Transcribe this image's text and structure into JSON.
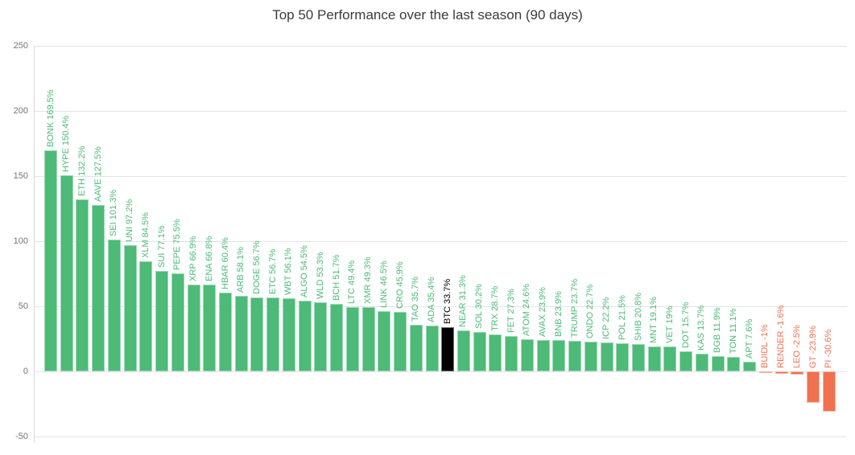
{
  "chart_data": {
    "type": "bar",
    "title": "Top 50 Performance over the last season (90 days)",
    "xlabel": "",
    "ylabel": "",
    "ylim": [
      -50,
      250
    ],
    "yticks": [
      250,
      200,
      150,
      100,
      50,
      0,
      -50
    ],
    "grid": "horizontal",
    "legend": "none",
    "highlight_symbol": "BTC",
    "categories": [
      "BONK",
      "HYPE",
      "ETH",
      "AAVE",
      "SEI",
      "UNI",
      "XLM",
      "SUI",
      "PEPE",
      "XRP",
      "ENA",
      "HBAR",
      "ARB",
      "DOGE",
      "ETC",
      "WBT",
      "ALGO",
      "WLD",
      "BCH",
      "LTC",
      "XMR",
      "LINK",
      "CRO",
      "TAO",
      "ADA",
      "BTC",
      "NEAR",
      "SOL",
      "TRX",
      "FET",
      "ATOM",
      "AVAX",
      "BNB",
      "TRUMP",
      "ONDO",
      "ICP",
      "POL",
      "SHIB",
      "MNT",
      "VET",
      "DOT",
      "KAS",
      "BGB",
      "TON",
      "APT",
      "BUIDL",
      "RENDER",
      "LEO",
      "GT",
      "PI"
    ],
    "values": [
      169.5,
      150.4,
      132.2,
      127.5,
      101.3,
      97.2,
      84.5,
      77.1,
      75.5,
      66.9,
      66.8,
      60.4,
      58.1,
      56.7,
      56.7,
      56.1,
      54.5,
      53.3,
      51.7,
      49.4,
      49.3,
      46.5,
      45.9,
      35.7,
      35.4,
      33.7,
      31.3,
      30.2,
      28.7,
      27.3,
      24.6,
      23.9,
      23.9,
      23.7,
      22.7,
      22.2,
      21.5,
      20.8,
      19.1,
      19,
      15.7,
      13.7,
      11.9,
      11.1,
      7.6,
      -1,
      -1.6,
      -2.5,
      -23.9,
      -30.6
    ],
    "bar_labels": [
      "BONK 169.5%",
      "HYPE 150.4%",
      "ETH 132.2%",
      "AAVE 127.5%",
      "SEI 101.3%",
      "UNI 97.2%",
      "XLM 84.5%",
      "SUI 77.1%",
      "PEPE 75.5%",
      "XRP 66.9%",
      "ENA 66.8%",
      "HBAR 60.4%",
      "ARB 58.1%",
      "DOGE 56.7%",
      "ETC 56.7%",
      "WBT 56.1%",
      "ALGO 54.5%",
      "WLD 53.3%",
      "BCH 51.7%",
      "LTC 49.4%",
      "XMR 49.3%",
      "LINK 46.5%",
      "CRO 45.9%",
      "TAO 35.7%",
      "ADA 35.4%",
      "BTC 33.7%",
      "NEAR 31.3%",
      "SOL 30.2%",
      "TRX 28.7%",
      "FET 27.3%",
      "ATOM 24.6%",
      "AVAX 23.9%",
      "BNB 23.9%",
      "TRUMP 23.7%",
      "ONDO 22.7%",
      "ICP 22.2%",
      "POL 21.5%",
      "SHIB 20.8%",
      "MNT 19.1%",
      "VET 19%",
      "DOT 15.7%",
      "KAS 13.7%",
      "BGB 11.9%",
      "TON 11.1%",
      "APT 7.6%",
      "BUIDL -1%",
      "RENDER -1.6%",
      "LEO -2.5%",
      "GT -23.9%",
      "PI -30.6%"
    ],
    "colors": {
      "positive": "#4dba77",
      "negative": "#f07150",
      "highlight": "#000000",
      "grid": "#e4e4e4",
      "axis": "#d8d8d8",
      "tick_text": "#757575",
      "title_text": "#3b3b3b"
    }
  }
}
